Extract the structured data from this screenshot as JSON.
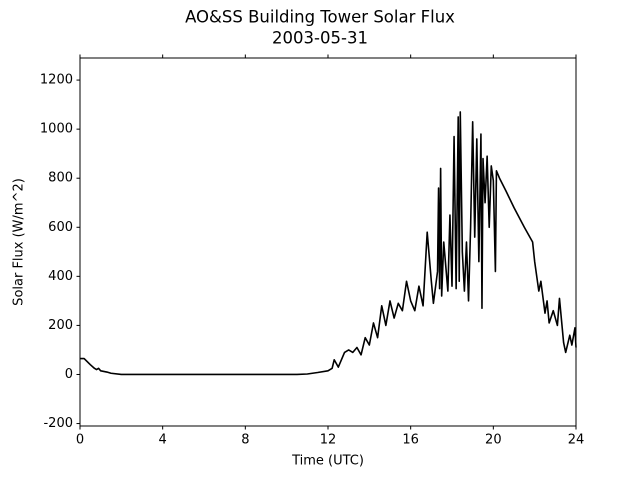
{
  "chart_data": {
    "type": "line",
    "title": "AO&SS Building Tower Solar Flux",
    "subtitle": "2003-05-31",
    "x_label": "Time (UTC)",
    "y_label": "Solar Flux (W/m^2)",
    "xlim": [
      0,
      24
    ],
    "xticks": [
      0,
      4,
      8,
      12,
      16,
      20,
      24
    ],
    "ylim": [
      -210,
      1290
    ],
    "yticks": [
      -200,
      0,
      200,
      400,
      600,
      800,
      1000,
      1200
    ],
    "grid": false,
    "series": [
      {
        "name": "Solar Flux",
        "color": "#000000",
        "x": [
          0,
          0.2,
          0.5,
          0.7,
          0.8,
          0.9,
          1.0,
          1.3,
          1.5,
          2,
          4,
          8,
          10.5,
          11,
          11.5,
          12,
          12.2,
          12.3,
          12.5,
          12.8,
          13,
          13.2,
          13.4,
          13.6,
          13.8,
          14,
          14.2,
          14.4,
          14.6,
          14.8,
          15,
          15.2,
          15.4,
          15.6,
          15.8,
          16,
          16.2,
          16.4,
          16.6,
          16.8,
          17,
          17.1,
          17.3,
          17.35,
          17.4,
          17.45,
          17.5,
          17.6,
          17.8,
          17.9,
          18.0,
          18.1,
          18.2,
          18.3,
          18.35,
          18.4,
          18.5,
          18.6,
          18.7,
          18.8,
          18.9,
          19.0,
          19.1,
          19.2,
          19.3,
          19.4,
          19.45,
          19.5,
          19.6,
          19.7,
          19.8,
          19.9,
          20.0,
          20.1,
          20.15,
          20.3,
          20.6,
          21,
          21.5,
          21.9,
          22,
          22.2,
          22.3,
          22.5,
          22.6,
          22.7,
          22.9,
          23.1,
          23.2,
          23.4,
          23.5,
          23.7,
          23.8,
          23.95,
          24
        ],
        "values": [
          65,
          65,
          40,
          25,
          20,
          25,
          15,
          10,
          5,
          0,
          0,
          0,
          0,
          2,
          8,
          15,
          25,
          60,
          30,
          90,
          100,
          90,
          110,
          80,
          150,
          120,
          210,
          150,
          280,
          200,
          300,
          230,
          290,
          260,
          380,
          300,
          260,
          360,
          280,
          580,
          380,
          290,
          420,
          760,
          350,
          840,
          320,
          540,
          340,
          650,
          360,
          970,
          350,
          1050,
          380,
          1070,
          500,
          340,
          540,
          300,
          600,
          1030,
          560,
          960,
          460,
          980,
          270,
          880,
          700,
          890,
          600,
          850,
          790,
          420,
          830,
          800,
          750,
          680,
          600,
          540,
          460,
          340,
          380,
          250,
          300,
          210,
          260,
          200,
          310,
          130,
          90,
          160,
          120,
          190,
          110
        ]
      }
    ]
  }
}
